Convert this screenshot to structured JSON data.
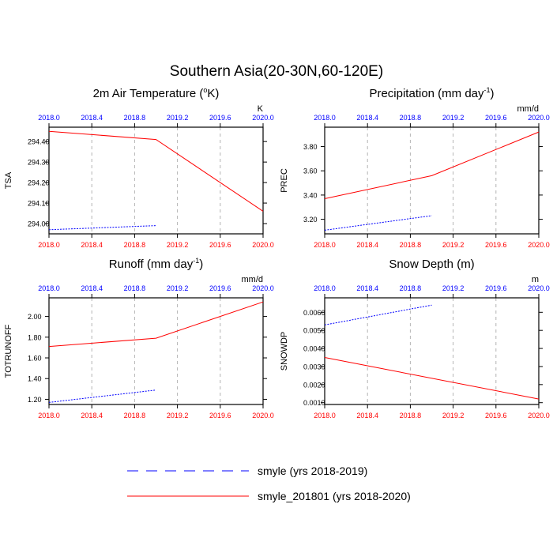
{
  "figure": {
    "title": "Southern Asia(20-30N,60-120E)"
  },
  "chart_data": [
    {
      "type": "line",
      "title_main": "2m Air Temperature (",
      "title_sup": "o",
      "title_end": "K)",
      "ylabel": "TSA",
      "units": "K",
      "xlim": [
        2018.0,
        2020.0
      ],
      "xticks": [
        "2018.0",
        "2018.4",
        "2018.8",
        "2019.2",
        "2019.6",
        "2020.0"
      ],
      "ylim": [
        293.95,
        294.47
      ],
      "yticks": [
        294.0,
        294.1,
        294.2,
        294.3,
        294.4
      ],
      "ytick_labels": [
        "294.00",
        "294.10",
        "294.20",
        "294.30",
        "294.40"
      ],
      "series": [
        {
          "name": "smyle",
          "style": "dashed-blue",
          "x": [
            2018.0,
            2019.0
          ],
          "y": [
            293.97,
            293.99
          ]
        },
        {
          "name": "smyle_201801",
          "style": "solid-red",
          "x": [
            2018.0,
            2019.0,
            2020.0
          ],
          "y": [
            294.45,
            294.41,
            294.06
          ]
        }
      ]
    },
    {
      "type": "line",
      "title_main": "Precipitation (mm day",
      "title_sup": "-1",
      "title_end": ")",
      "ylabel": "PREC",
      "units": "mm/d",
      "xlim": [
        2018.0,
        2020.0
      ],
      "xticks": [
        "2018.0",
        "2018.4",
        "2018.8",
        "2019.2",
        "2019.6",
        "2020.0"
      ],
      "ylim": [
        3.08,
        3.96
      ],
      "yticks": [
        3.2,
        3.4,
        3.6,
        3.8
      ],
      "ytick_labels": [
        "3.20",
        "3.40",
        "3.60",
        "3.80"
      ],
      "series": [
        {
          "name": "smyle",
          "style": "dashed-blue",
          "x": [
            2018.0,
            2019.0
          ],
          "y": [
            3.11,
            3.23
          ]
        },
        {
          "name": "smyle_201801",
          "style": "solid-red",
          "x": [
            2018.0,
            2019.0,
            2020.0
          ],
          "y": [
            3.37,
            3.56,
            3.92
          ]
        }
      ]
    },
    {
      "type": "line",
      "title_main": "Runoff (mm day",
      "title_sup": "-1",
      "title_end": ")",
      "ylabel": "TOTRUNOFF",
      "units": "mm/d",
      "xlim": [
        2018.0,
        2020.0
      ],
      "xticks": [
        "2018.0",
        "2018.4",
        "2018.8",
        "2019.2",
        "2019.6",
        "2020.0"
      ],
      "ylim": [
        1.15,
        2.18
      ],
      "yticks": [
        1.2,
        1.4,
        1.6,
        1.8,
        2.0
      ],
      "ytick_labels": [
        "1.20",
        "1.40",
        "1.60",
        "1.80",
        "2.00"
      ],
      "series": [
        {
          "name": "smyle",
          "style": "dashed-blue",
          "x": [
            2018.0,
            2019.0
          ],
          "y": [
            1.17,
            1.29
          ]
        },
        {
          "name": "smyle_201801",
          "style": "solid-red",
          "x": [
            2018.0,
            2019.0,
            2020.0
          ],
          "y": [
            1.71,
            1.79,
            2.14
          ]
        }
      ]
    },
    {
      "type": "line",
      "title_main": "Snow Depth (m)",
      "title_sup": "",
      "title_end": "",
      "ylabel": "SNOWDP",
      "units": "m",
      "xlim": [
        2018.0,
        2020.0
      ],
      "xticks": [
        "2018.0",
        "2018.4",
        "2018.8",
        "2019.2",
        "2019.6",
        "2020.0"
      ],
      "ylim": [
        0.0009,
        0.0068
      ],
      "yticks": [
        0.001,
        0.002,
        0.003,
        0.004,
        0.005,
        0.006
      ],
      "ytick_labels": [
        "0.0010",
        "0.0020",
        "0.0030",
        "0.0040",
        "0.0050",
        "0.0060"
      ],
      "series": [
        {
          "name": "smyle",
          "style": "dashed-blue",
          "x": [
            2018.0,
            2019.0
          ],
          "y": [
            0.0053,
            0.0064
          ]
        },
        {
          "name": "smyle_201801",
          "style": "solid-red",
          "x": [
            2018.0,
            2020.0
          ],
          "y": [
            0.0035,
            0.0012
          ]
        }
      ]
    }
  ],
  "legend": {
    "items": [
      {
        "label": "smyle (yrs 2018-2019)",
        "style": "dashed-blue"
      },
      {
        "label": "smyle_201801 (yrs 2018-2020)",
        "style": "solid-red"
      }
    ]
  },
  "colors": {
    "dashed-blue": "#0000ff",
    "solid-red": "#ff0000",
    "top_tick": "#0000ff",
    "bottom_tick": "#ff0000",
    "grid": "#b4b4b4"
  }
}
